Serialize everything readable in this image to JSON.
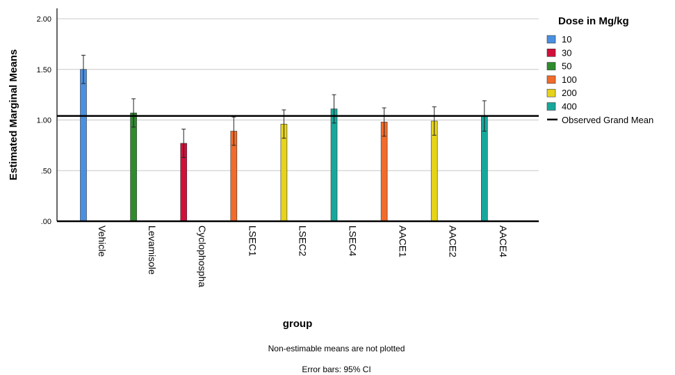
{
  "chart_data": {
    "type": "bar",
    "xlabel": "group",
    "ylabel": "Estimated Marginal Means",
    "ylim": [
      0,
      2.0
    ],
    "yticks": [
      ".00",
      ".50",
      "1.00",
      "1.50",
      "2.00"
    ],
    "grid": true,
    "categories": [
      "Vehicle",
      "Levamisole",
      "Cyclophospha",
      "LSEC1",
      "LSEC2",
      "LSEC4",
      "AACE1",
      "AACE2",
      "AACE4"
    ],
    "legend": {
      "title": "Dose in Mg/kg",
      "position": "right",
      "entries": [
        {
          "label": "10",
          "color": "#4a90e2"
        },
        {
          "label": "30",
          "color": "#d0103a"
        },
        {
          "label": "50",
          "color": "#2e8b2e"
        },
        {
          "label": "100",
          "color": "#f26b2a"
        },
        {
          "label": "200",
          "color": "#e6d31a"
        },
        {
          "label": "400",
          "color": "#17a89b"
        }
      ],
      "reference_line_label": "Observed Grand Mean"
    },
    "grand_mean": 1.04,
    "bars": [
      {
        "category": "Vehicle",
        "dose": "10",
        "value": 1.5,
        "ci_low": 1.36,
        "ci_high": 1.64
      },
      {
        "category": "Levamisole",
        "dose": "50",
        "value": 1.07,
        "ci_low": 0.93,
        "ci_high": 1.21
      },
      {
        "category": "Cyclophospha",
        "dose": "30",
        "value": 0.77,
        "ci_low": 0.63,
        "ci_high": 0.91
      },
      {
        "category": "LSEC1",
        "dose": "100",
        "value": 0.89,
        "ci_low": 0.75,
        "ci_high": 1.03
      },
      {
        "category": "LSEC2",
        "dose": "200",
        "value": 0.96,
        "ci_low": 0.82,
        "ci_high": 1.1
      },
      {
        "category": "LSEC4",
        "dose": "400",
        "value": 1.11,
        "ci_low": 0.97,
        "ci_high": 1.25
      },
      {
        "category": "AACE1",
        "dose": "100",
        "value": 0.98,
        "ci_low": 0.84,
        "ci_high": 1.12
      },
      {
        "category": "AACE2",
        "dose": "200",
        "value": 0.99,
        "ci_low": 0.85,
        "ci_high": 1.13
      },
      {
        "category": "AACE4",
        "dose": "400",
        "value": 1.04,
        "ci_low": 0.89,
        "ci_high": 1.19
      }
    ],
    "notes": [
      "Non-estimable means are not plotted",
      "Error bars: 95% CI"
    ]
  }
}
